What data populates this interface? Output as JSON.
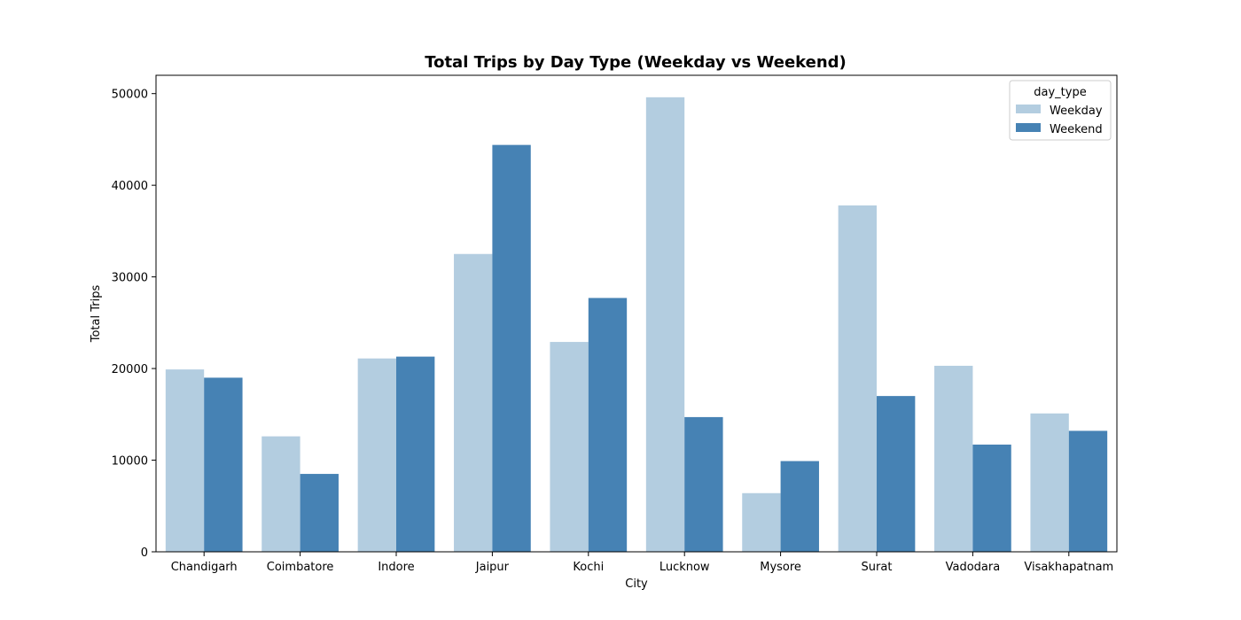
{
  "chart_data": {
    "type": "bar",
    "title": "Total Trips by Day Type (Weekday vs Weekend)",
    "xlabel": "City",
    "ylabel": "Total Trips",
    "ylim": [
      0,
      52000
    ],
    "yticks": [
      0,
      10000,
      20000,
      30000,
      40000,
      50000
    ],
    "categories": [
      "Chandigarh",
      "Coimbatore",
      "Indore",
      "Jaipur",
      "Kochi",
      "Lucknow",
      "Mysore",
      "Surat",
      "Vadodara",
      "Visakhapatnam"
    ],
    "series": [
      {
        "name": "Weekday",
        "color": "#b3cde0",
        "values": [
          19900,
          12600,
          21100,
          32500,
          22900,
          49600,
          6400,
          37800,
          20300,
          15100
        ]
      },
      {
        "name": "Weekend",
        "color": "#4682b4",
        "values": [
          19000,
          8500,
          21300,
          44400,
          27700,
          14700,
          9900,
          17000,
          11700,
          13200
        ]
      }
    ],
    "legend": {
      "title": "day_type",
      "placement": "top-right"
    },
    "grid": false
  }
}
